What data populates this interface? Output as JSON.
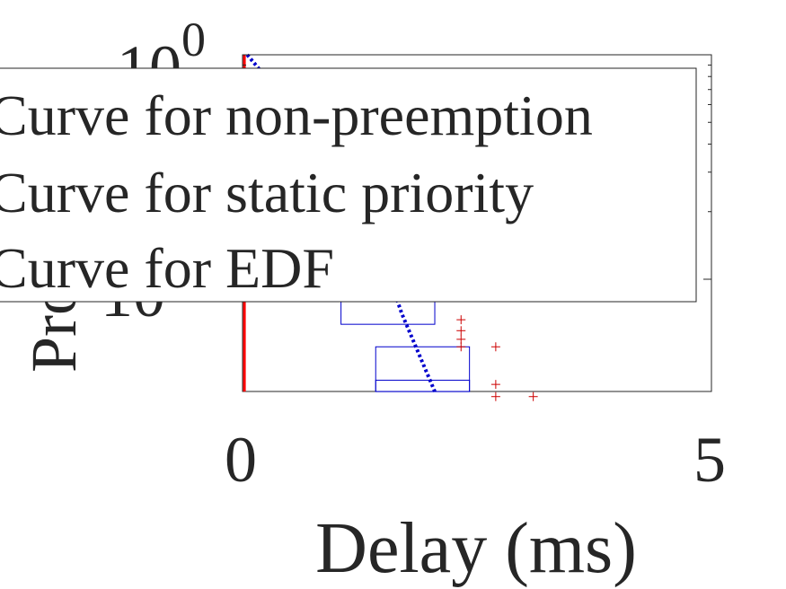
{
  "chart_data": {
    "type": "line",
    "title": "",
    "xlabel": "Delay (ms)",
    "ylabel": "Probability",
    "xlim": [
      0,
      5
    ],
    "ylim_log10": [
      -1,
      0
    ],
    "yscale": "log",
    "grid": false,
    "legend_placement": "top-left",
    "x_tick_labels": [
      "0",
      "5"
    ],
    "y_tick_labels": [
      {
        "base": "10",
        "exp": "0"
      },
      {
        "base": "10",
        "exp": "-1"
      }
    ],
    "legend": [
      {
        "label": "Curve for non-preemption",
        "color": "#ff0000"
      },
      {
        "label": "Curve for static priority",
        "color": "#0000ff"
      },
      {
        "label": "Curve for EDF",
        "color": "#0000ff"
      }
    ],
    "series": [
      {
        "color": "#ff0000",
        "style": "solid",
        "x": [
          0.02,
          0.02,
          0.02
        ],
        "y": [
          1.0,
          0.3,
          0.0316
        ]
      },
      {
        "color": "#0000cc",
        "style": "dotted",
        "x": [
          0.05,
          0.3,
          0.6,
          1.0,
          1.4,
          1.7,
          2.05
        ],
        "y": [
          1.0,
          0.75,
          0.55,
          0.35,
          0.16,
          0.07,
          0.0316
        ]
      }
    ],
    "boxes": [
      {
        "color": "#0000cc",
        "x_range": [
          1.05,
          2.05
        ],
        "y_range": [
          0.063,
          0.1
        ]
      },
      {
        "color": "#0000cc",
        "x_range": [
          1.42,
          2.42
        ],
        "y_range": [
          0.0316,
          0.05
        ]
      },
      {
        "color": "#0000cc",
        "x_range": [
          1.42,
          2.42
        ],
        "y_range": [
          0.0316,
          0.0355
        ]
      }
    ],
    "outliers": {
      "color": "#cc0000",
      "points": [
        {
          "x": 2.33,
          "y": 0.066
        },
        {
          "x": 2.33,
          "y": 0.059
        },
        {
          "x": 2.33,
          "y": 0.054
        },
        {
          "x": 2.33,
          "y": 0.05
        },
        {
          "x": 2.7,
          "y": 0.05
        },
        {
          "x": 2.7,
          "y": 0.034
        },
        {
          "x": 2.7,
          "y": 0.03
        },
        {
          "x": 3.1,
          "y": 0.03
        }
      ]
    }
  }
}
